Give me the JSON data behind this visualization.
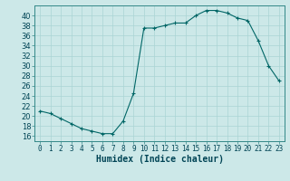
{
  "x": [
    0,
    1,
    2,
    3,
    4,
    5,
    6,
    7,
    8,
    9,
    10,
    11,
    12,
    13,
    14,
    15,
    16,
    17,
    18,
    19,
    20,
    21,
    22,
    23
  ],
  "y": [
    21,
    20.5,
    19.5,
    18.5,
    17.5,
    17,
    16.5,
    16.5,
    19,
    24.5,
    37.5,
    37.5,
    38,
    38.5,
    38.5,
    40,
    41,
    41,
    40.5,
    39.5,
    39,
    35,
    30,
    27
  ],
  "line_color": "#006666",
  "marker": "+",
  "bg_color": "#cce8e8",
  "grid_color": "#aad4d4",
  "xlabel": "Humidex (Indice chaleur)",
  "xlim": [
    -0.5,
    23.5
  ],
  "ylim": [
    15,
    42
  ],
  "yticks": [
    16,
    18,
    20,
    22,
    24,
    26,
    28,
    30,
    32,
    34,
    36,
    38,
    40
  ],
  "xtick_labels": [
    "0",
    "1",
    "2",
    "3",
    "4",
    "5",
    "6",
    "7",
    "8",
    "9",
    "10",
    "11",
    "12",
    "13",
    "14",
    "15",
    "16",
    "17",
    "18",
    "19",
    "20",
    "21",
    "22",
    "23"
  ],
  "font_color": "#004455",
  "axis_color": "#338888",
  "tick_fontsize": 5.5,
  "xlabel_fontsize": 7,
  "ylabel_fontsize": 6
}
